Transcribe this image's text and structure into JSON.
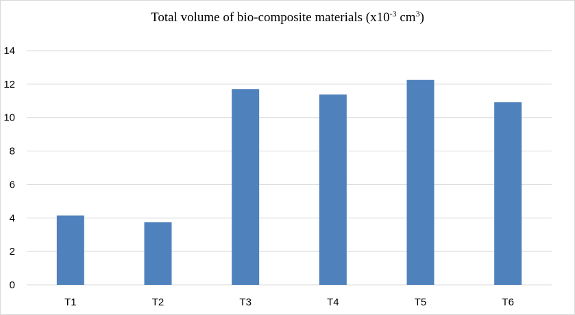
{
  "chart_data": {
    "type": "bar",
    "title_main": "Total volume of bio-composite materials (x10",
    "title_exp1": "-3",
    "title_mid": " cm",
    "title_exp2": "3",
    "title_end": ")",
    "categories": [
      "T1",
      "T2",
      "T3",
      "T4",
      "T5",
      "T6"
    ],
    "values": [
      4.15,
      3.75,
      11.7,
      11.38,
      12.25,
      10.92
    ],
    "ylim": [
      0,
      14
    ],
    "yticks": [
      0,
      2,
      4,
      6,
      8,
      10,
      12,
      14
    ],
    "grid": true,
    "legend": "none",
    "bar_color": "#4f81bd",
    "grid_color": "#d9d9d9"
  }
}
